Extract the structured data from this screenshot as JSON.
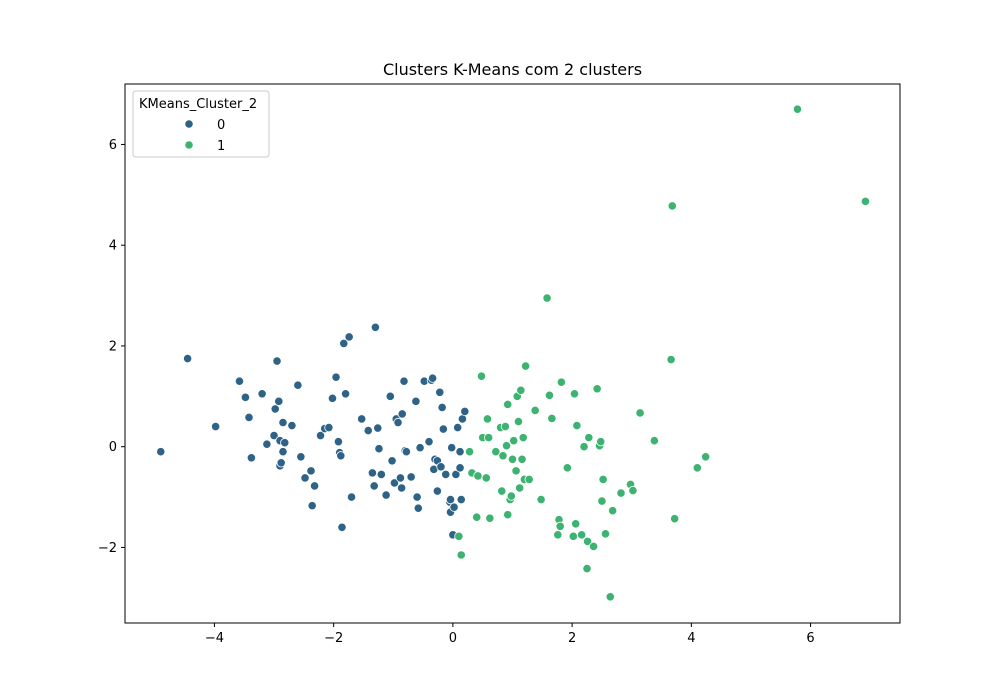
{
  "chart_data": {
    "type": "scatter",
    "title": "Clusters K-Means com 2 clusters",
    "xlabel": "",
    "ylabel": "",
    "xlim": [
      -5.5,
      7.5
    ],
    "ylim": [
      -3.5,
      7.2
    ],
    "xticks": [
      -4,
      -2,
      0,
      2,
      4,
      6
    ],
    "yticks": [
      -2,
      0,
      2,
      4,
      6
    ],
    "xtick_labels": [
      "−4",
      "−2",
      "0",
      "2",
      "4",
      "6"
    ],
    "ytick_labels": [
      "−2",
      "0",
      "2",
      "4",
      "6"
    ],
    "grid": false,
    "legend": {
      "title": "KMeans_Cluster_2",
      "placement": "top-left",
      "entries": [
        "0",
        "1"
      ]
    },
    "series": [
      {
        "name": "0",
        "color": "#2e6387",
        "points": [
          [
            -4.9,
            -0.1
          ],
          [
            -4.45,
            1.75
          ],
          [
            -3.98,
            0.4
          ],
          [
            -3.58,
            1.3
          ],
          [
            -3.48,
            0.98
          ],
          [
            -3.42,
            0.58
          ],
          [
            -3.38,
            -0.22
          ],
          [
            -3.2,
            1.05
          ],
          [
            -3.12,
            0.05
          ],
          [
            -3.0,
            0.22
          ],
          [
            -2.98,
            0.75
          ],
          [
            -2.95,
            1.7
          ],
          [
            -2.92,
            0.9
          ],
          [
            -2.9,
            0.12
          ],
          [
            -2.9,
            -0.38
          ],
          [
            -2.88,
            -0.32
          ],
          [
            -2.85,
            0.48
          ],
          [
            -2.85,
            -0.1
          ],
          [
            -2.82,
            0.08
          ],
          [
            -2.7,
            0.42
          ],
          [
            -2.6,
            1.22
          ],
          [
            -2.55,
            -0.2
          ],
          [
            -2.48,
            -0.62
          ],
          [
            -2.38,
            -0.48
          ],
          [
            -2.36,
            -1.17
          ],
          [
            -2.32,
            -0.78
          ],
          [
            -2.22,
            0.22
          ],
          [
            -2.15,
            0.36
          ],
          [
            -2.08,
            0.38
          ],
          [
            -2.02,
            0.96
          ],
          [
            -1.96,
            1.38
          ],
          [
            -1.92,
            0.1
          ],
          [
            -1.9,
            -0.12
          ],
          [
            -1.88,
            -0.18
          ],
          [
            -1.86,
            -1.6
          ],
          [
            -1.83,
            2.05
          ],
          [
            -1.8,
            1.05
          ],
          [
            -1.74,
            2.18
          ],
          [
            -1.7,
            -1.0
          ],
          [
            -1.53,
            0.55
          ],
          [
            -1.42,
            0.32
          ],
          [
            -1.35,
            -0.52
          ],
          [
            -1.32,
            -0.78
          ],
          [
            -1.3,
            2.37
          ],
          [
            -1.26,
            0.37
          ],
          [
            -1.24,
            -0.04
          ],
          [
            -1.2,
            -0.55
          ],
          [
            -1.12,
            -0.96
          ],
          [
            -1.05,
            1.0
          ],
          [
            -1.02,
            -0.28
          ],
          [
            -0.98,
            -0.72
          ],
          [
            -0.95,
            0.55
          ],
          [
            -0.92,
            0.48
          ],
          [
            -0.88,
            -0.62
          ],
          [
            -0.86,
            -0.82
          ],
          [
            -0.85,
            0.65
          ],
          [
            -0.82,
            1.3
          ],
          [
            -0.8,
            -0.08
          ],
          [
            -0.78,
            -0.1
          ],
          [
            -0.7,
            -0.6
          ],
          [
            -0.62,
            0.9
          ],
          [
            -0.6,
            -1.0
          ],
          [
            -0.58,
            -1.22
          ],
          [
            -0.55,
            -0.02
          ],
          [
            -0.48,
            1.3
          ],
          [
            -0.4,
            0.1
          ],
          [
            -0.36,
            1.32
          ],
          [
            -0.34,
            1.36
          ],
          [
            -0.32,
            -0.45
          ],
          [
            -0.3,
            -0.25
          ],
          [
            -0.26,
            -0.28
          ],
          [
            -0.26,
            -0.88
          ],
          [
            -0.22,
            1.08
          ],
          [
            -0.2,
            -0.4
          ],
          [
            -0.18,
            0.78
          ],
          [
            -0.16,
            0.35
          ],
          [
            -0.12,
            -0.55
          ],
          [
            -0.05,
            -1.1
          ],
          [
            -0.04,
            -1.05
          ],
          [
            -0.04,
            -1.3
          ],
          [
            -0.02,
            -0.02
          ],
          [
            0.0,
            -1.75
          ],
          [
            0.02,
            -1.2
          ],
          [
            0.05,
            -0.55
          ],
          [
            0.08,
            0.38
          ],
          [
            0.12,
            -0.42
          ],
          [
            0.14,
            -1.05
          ],
          [
            0.16,
            0.55
          ],
          [
            0.2,
            0.7
          ],
          [
            0.12,
            -0.1
          ]
        ]
      },
      {
        "name": "1",
        "color": "#3cb371",
        "points": [
          [
            0.1,
            -1.78
          ],
          [
            0.14,
            -2.15
          ],
          [
            0.28,
            -0.1
          ],
          [
            0.32,
            -0.52
          ],
          [
            0.4,
            -1.4
          ],
          [
            0.42,
            -0.58
          ],
          [
            0.48,
            1.4
          ],
          [
            0.5,
            0.18
          ],
          [
            0.56,
            -0.62
          ],
          [
            0.58,
            0.55
          ],
          [
            0.6,
            0.18
          ],
          [
            0.62,
            -1.42
          ],
          [
            0.72,
            -0.1
          ],
          [
            0.8,
            0.38
          ],
          [
            0.82,
            -0.88
          ],
          [
            0.84,
            -0.18
          ],
          [
            0.88,
            0.4
          ],
          [
            0.9,
            0.02
          ],
          [
            0.92,
            0.84
          ],
          [
            0.92,
            -1.35
          ],
          [
            0.96,
            -1.05
          ],
          [
            0.98,
            -0.98
          ],
          [
            1.0,
            -0.25
          ],
          [
            1.02,
            0.12
          ],
          [
            1.06,
            -0.48
          ],
          [
            1.08,
            1.0
          ],
          [
            1.1,
            0.5
          ],
          [
            1.12,
            -0.82
          ],
          [
            1.14,
            1.12
          ],
          [
            1.16,
            -0.25
          ],
          [
            1.18,
            0.18
          ],
          [
            1.2,
            -0.65
          ],
          [
            1.22,
            1.6
          ],
          [
            1.28,
            -0.65
          ],
          [
            1.38,
            0.72
          ],
          [
            1.48,
            -1.05
          ],
          [
            1.58,
            2.95
          ],
          [
            1.62,
            1.02
          ],
          [
            1.66,
            0.56
          ],
          [
            1.76,
            -1.75
          ],
          [
            1.78,
            -1.45
          ],
          [
            1.8,
            -1.58
          ],
          [
            1.82,
            1.28
          ],
          [
            1.92,
            -0.42
          ],
          [
            2.02,
            -1.78
          ],
          [
            2.04,
            1.05
          ],
          [
            2.06,
            -1.53
          ],
          [
            2.08,
            0.42
          ],
          [
            2.16,
            -1.75
          ],
          [
            2.2,
            0.0
          ],
          [
            2.25,
            -2.42
          ],
          [
            2.26,
            -1.88
          ],
          [
            2.28,
            0.18
          ],
          [
            2.36,
            -1.98
          ],
          [
            2.42,
            1.15
          ],
          [
            2.46,
            0.02
          ],
          [
            2.48,
            0.1
          ],
          [
            2.5,
            -1.08
          ],
          [
            2.52,
            -0.65
          ],
          [
            2.56,
            -1.73
          ],
          [
            2.64,
            -2.98
          ],
          [
            2.68,
            -1.27
          ],
          [
            2.82,
            -0.92
          ],
          [
            2.98,
            -0.75
          ],
          [
            3.02,
            -0.87
          ],
          [
            3.14,
            0.67
          ],
          [
            3.38,
            0.12
          ],
          [
            3.66,
            1.73
          ],
          [
            3.68,
            4.78
          ],
          [
            3.72,
            -1.43
          ],
          [
            4.1,
            -0.42
          ],
          [
            4.24,
            -0.2
          ],
          [
            5.78,
            6.7
          ],
          [
            6.92,
            4.87
          ]
        ]
      }
    ]
  }
}
